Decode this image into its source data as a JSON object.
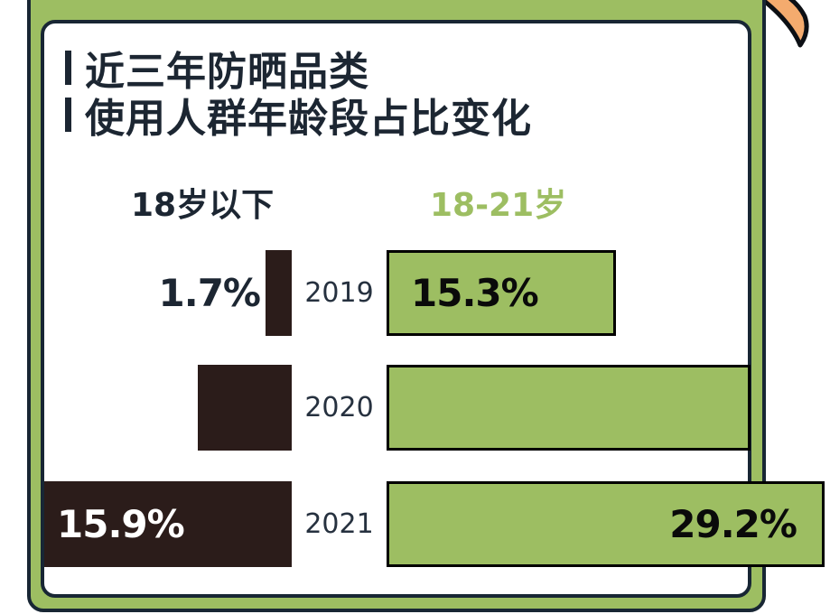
{
  "title": {
    "line1": "近三年防晒品类",
    "line2": "使用人群年龄段占比变化"
  },
  "legend": {
    "left_group": "18岁以下",
    "right_group": "18-21岁"
  },
  "colors": {
    "green": "#9dbe62",
    "dark_brown": "#2b1c1a",
    "outline_dark": "#182634",
    "ink": "#1c2632",
    "orange": "#f4ab6e"
  },
  "chart_data": {
    "type": "bar",
    "title": "近三年防晒品类使用人群年龄段占比变化",
    "orientation": "horizontal diverging (left: 18岁以下, right: 18-21岁)",
    "categories": [
      "2019",
      "2020",
      "2021"
    ],
    "series": [
      {
        "name": "18岁以下",
        "color": "#2b1c1a",
        "values": [
          1.7,
          6.0,
          15.9
        ],
        "labels": [
          "1.7%",
          "",
          "15.9%"
        ]
      },
      {
        "name": "18-21岁",
        "color": "#9dbe62",
        "values": [
          15.3,
          24.3,
          29.2
        ],
        "labels": [
          "15.3%",
          "",
          "29.2%"
        ]
      }
    ],
    "value_unit": "%",
    "legend_position": "top, above each bar column",
    "grid": false,
    "notes": "2020 bars carry no visible value labels; 6.0 and 24.3 are estimated from bar lengths."
  }
}
